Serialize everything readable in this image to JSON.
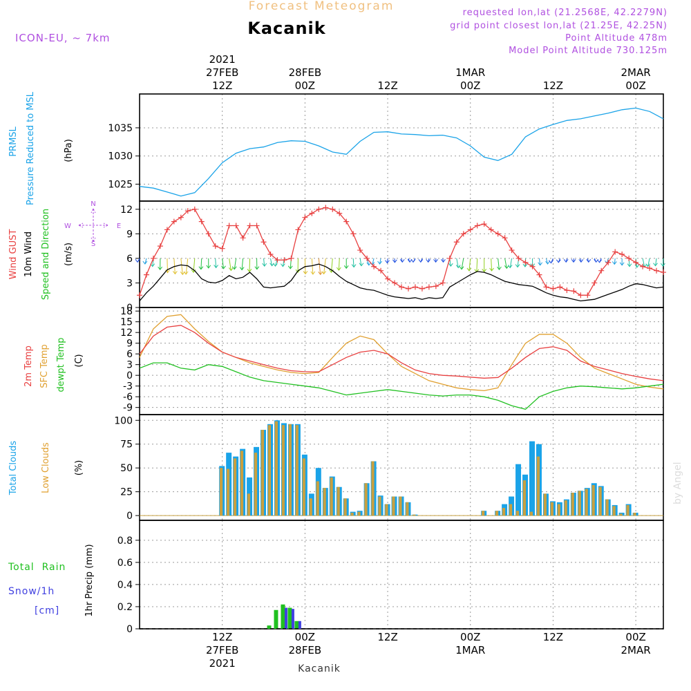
{
  "header": {
    "product": "Forecast Meteogram",
    "location": "Kacanik",
    "model": "ICON-EU, ~ 7km",
    "requested": "requested lon,lat (21.2568E, 42.2279N)",
    "grid_point": "grid point closest lon,lat (21.25E, 42.25N)",
    "point_altitude": "Point Altitude 478m",
    "model_altitude": "Model Point Altitude 730.125m",
    "credit": "by Angel",
    "bottom_label": "Kacanik"
  },
  "time_axis": {
    "top_labels": [
      {
        "t": 12,
        "lines": [
          "2021",
          "27FEB",
          "12Z"
        ]
      },
      {
        "t": 24,
        "lines": [
          "28FEB",
          "00Z"
        ]
      },
      {
        "t": 36,
        "lines": [
          "12Z"
        ]
      },
      {
        "t": 48,
        "lines": [
          "1MAR",
          "00Z"
        ]
      },
      {
        "t": 60,
        "lines": [
          "12Z"
        ]
      },
      {
        "t": 72,
        "lines": [
          "2MAR",
          "00Z"
        ]
      }
    ],
    "bottom_labels": [
      {
        "t": 12,
        "lines": [
          "12Z",
          "27FEB",
          "2021"
        ]
      },
      {
        "t": 24,
        "lines": [
          "00Z",
          "28FEB"
        ]
      },
      {
        "t": 36,
        "lines": [
          "12Z"
        ]
      },
      {
        "t": 48,
        "lines": [
          "00Z",
          "1MAR"
        ]
      },
      {
        "t": 60,
        "lines": [
          "12Z"
        ]
      },
      {
        "t": 72,
        "lines": [
          "00Z",
          "2MAR"
        ]
      }
    ]
  },
  "colors": {
    "pressure": "#1aa3e8",
    "gust": "#e84040",
    "wind": "#000000",
    "sfc_temp": "#e0a030",
    "dewpoint": "#20c020",
    "total_clouds": "#1aa3e8",
    "low_clouds": "#c8a040",
    "rain": "#20c020",
    "snow": "#4040e0",
    "header_purple": "#b050e0",
    "header_orange": "#f0c080"
  },
  "panels": {
    "pressure": {
      "labels": [
        "PRMSL",
        "Pressure Reduced to MSL"
      ],
      "unit": "(hPa)"
    },
    "wind": {
      "labels": [
        "Wind GUST",
        "10m Wind",
        "Speed and Direction"
      ],
      "unit": "(m/s)",
      "compass": [
        "N",
        "W",
        "E",
        "S"
      ]
    },
    "temp": {
      "labels": [
        "2m Temp",
        "SFC Temp",
        "dewpt Temp"
      ],
      "unit": "(C)"
    },
    "clouds": {
      "labels": [
        "Total Clouds",
        "Low Clouds"
      ],
      "unit": "(%)"
    },
    "precip": {
      "labels": [
        "Total  Rain",
        "Snow/1h",
        "[cm]"
      ],
      "unit": "1hr Precip (mm)"
    }
  },
  "chart_data": [
    {
      "type": "line",
      "name": "pressure",
      "ylabel": "(hPa)",
      "ylim": [
        1022,
        1041
      ],
      "yticks": [
        1025,
        1030,
        1035
      ],
      "x": [
        0,
        2,
        4,
        6,
        8,
        10,
        12,
        14,
        16,
        18,
        20,
        22,
        24,
        26,
        28,
        30,
        32,
        34,
        36,
        38,
        40,
        42,
        44,
        46,
        48,
        50,
        52,
        54,
        56,
        58,
        60,
        62,
        64,
        66,
        68,
        70,
        72,
        74,
        76
      ],
      "series": [
        {
          "name": "PRMSL",
          "values": [
            1024.6,
            1024.3,
            1023.6,
            1022.9,
            1023.5,
            1026.0,
            1028.8,
            1030.5,
            1031.3,
            1031.6,
            1032.4,
            1032.7,
            1032.6,
            1031.8,
            1030.7,
            1030.3,
            1032.6,
            1034.2,
            1034.3,
            1033.9,
            1033.8,
            1033.6,
            1033.7,
            1033.2,
            1031.8,
            1029.8,
            1029.2,
            1030.3,
            1033.4,
            1034.8,
            1035.6,
            1036.3,
            1036.6,
            1037.1,
            1037.6,
            1038.2,
            1038.5,
            1037.9,
            1036.6
          ]
        }
      ]
    },
    {
      "type": "line",
      "name": "wind",
      "ylabel": "(m/s)",
      "ylim": [
        0,
        13
      ],
      "yticks": [
        0,
        3,
        6,
        9,
        12
      ],
      "x": [
        0,
        1,
        2,
        3,
        4,
        5,
        6,
        7,
        8,
        9,
        10,
        11,
        12,
        13,
        14,
        15,
        16,
        17,
        18,
        19,
        20,
        21,
        22,
        23,
        24,
        25,
        26,
        27,
        28,
        29,
        30,
        31,
        32,
        33,
        34,
        35,
        36,
        37,
        38,
        39,
        40,
        41,
        42,
        43,
        44,
        45,
        46,
        47,
        48,
        49,
        50,
        51,
        52,
        53,
        54,
        55,
        56,
        57,
        58,
        59,
        60,
        61,
        62,
        63,
        64,
        65,
        66,
        67,
        68,
        69,
        70,
        71,
        72,
        73,
        74,
        75,
        76
      ],
      "series": [
        {
          "name": "Wind GUST",
          "values": [
            1.5,
            4,
            6,
            7.5,
            9.5,
            10.5,
            11,
            11.8,
            12,
            10.5,
            9,
            7.5,
            7.2,
            10,
            10,
            8.5,
            10,
            10,
            8,
            6.5,
            5.8,
            5.8,
            6,
            9.5,
            11,
            11.5,
            12,
            12.2,
            12,
            11.5,
            10.5,
            9,
            7,
            6,
            5,
            4.5,
            3.5,
            3,
            2.5,
            2.3,
            2.5,
            2.3,
            2.5,
            2.6,
            3,
            6,
            8,
            9,
            9.5,
            10,
            10.2,
            9.5,
            9,
            8.5,
            7,
            6,
            5.5,
            5,
            4,
            2.5,
            2.3,
            2.5,
            2.1,
            2,
            1.5,
            1.5,
            3,
            4.5,
            5.5,
            6.8,
            6.5,
            6,
            5.5,
            5,
            4.8,
            4.5,
            4.3
          ]
        },
        {
          "name": "10m Wind",
          "values": [
            0.8,
            1.8,
            2.6,
            3.6,
            4.6,
            5.0,
            5.2,
            5.1,
            4.5,
            3.5,
            3.1,
            3.0,
            3.3,
            3.9,
            3.5,
            3.7,
            4.3,
            3.5,
            2.5,
            2.4,
            2.5,
            2.6,
            3.3,
            4.5,
            5.0,
            5.1,
            5.3,
            5.0,
            4.5,
            3.8,
            3.2,
            2.8,
            2.4,
            2.2,
            2.1,
            1.8,
            1.5,
            1.3,
            1.2,
            1.1,
            1.2,
            1.0,
            1.2,
            1.1,
            1.2,
            2.5,
            3.0,
            3.5,
            4.0,
            4.4,
            4.3,
            4.0,
            3.6,
            3.2,
            3.0,
            2.8,
            2.7,
            2.6,
            2.2,
            1.8,
            1.5,
            1.3,
            1.2,
            1.0,
            0.8,
            0.9,
            1.0,
            1.3,
            1.6,
            1.9,
            2.2,
            2.6,
            2.9,
            2.8,
            2.6,
            2.4,
            2.5
          ]
        }
      ]
    },
    {
      "type": "line",
      "name": "temperature",
      "ylabel": "(C)",
      "ylim": [
        -11,
        19
      ],
      "yticks": [
        -9,
        -6,
        -3,
        0,
        3,
        6,
        9,
        12,
        15,
        18
      ],
      "x": [
        0,
        2,
        4,
        6,
        8,
        10,
        12,
        14,
        16,
        18,
        20,
        22,
        24,
        26,
        28,
        30,
        32,
        34,
        36,
        38,
        40,
        42,
        44,
        46,
        48,
        50,
        52,
        54,
        56,
        58,
        60,
        62,
        64,
        66,
        68,
        70,
        72,
        74,
        76
      ],
      "series": [
        {
          "name": "2m Temp",
          "values": [
            6,
            11,
            13.5,
            14,
            12,
            9,
            6.5,
            5,
            4,
            3,
            2,
            1.3,
            1,
            1,
            3,
            5,
            6.5,
            7,
            6,
            3.5,
            1.5,
            0.5,
            0,
            -0.2,
            -0.5,
            -0.8,
            -0.6,
            2,
            5,
            7.5,
            8,
            7,
            4,
            2.5,
            1.5,
            0.5,
            -0.3,
            -1,
            -1.5
          ]
        },
        {
          "name": "SFC Temp",
          "values": [
            5,
            13,
            16.5,
            17,
            13,
            9.5,
            6.5,
            5,
            3.5,
            2.5,
            1.5,
            0.8,
            0.5,
            0.8,
            5,
            9,
            11,
            10,
            6,
            2.5,
            0.5,
            -1.5,
            -2.5,
            -3.5,
            -4,
            -4.3,
            -3.5,
            3,
            9,
            11.5,
            11.5,
            9,
            5,
            2,
            0.5,
            -1,
            -2.5,
            -3.3,
            -3.8
          ]
        },
        {
          "name": "dewpt Temp",
          "values": [
            2,
            3.5,
            3.5,
            2,
            1.5,
            3,
            2.5,
            1,
            -0.5,
            -1.5,
            -2,
            -2.5,
            -3,
            -3.5,
            -4.5,
            -5.5,
            -5,
            -4.5,
            -4,
            -4.5,
            -5,
            -5.5,
            -5.8,
            -5.5,
            -5.5,
            -6,
            -7,
            -8.5,
            -9.5,
            -6,
            -4.5,
            -3.5,
            -3,
            -3.2,
            -3.5,
            -3.8,
            -3.5,
            -3,
            -2.5
          ]
        }
      ]
    },
    {
      "type": "bar",
      "name": "clouds",
      "ylabel": "(%)",
      "ylim": [
        -5,
        106
      ],
      "yticks": [
        0,
        25,
        50,
        75,
        100
      ],
      "x": [
        12,
        13,
        14,
        15,
        16,
        17,
        18,
        19,
        20,
        21,
        22,
        23,
        24,
        25,
        26,
        27,
        28,
        29,
        30,
        31,
        32,
        33,
        34,
        35,
        36,
        37,
        38,
        39,
        40,
        50,
        52,
        53,
        54,
        55,
        56,
        57,
        58,
        59,
        60,
        61,
        62,
        63,
        64,
        65,
        66,
        67,
        68,
        69,
        70,
        71,
        72,
        73,
        74,
        75
      ],
      "series": [
        {
          "name": "Total Clouds",
          "values": [
            52,
            66,
            62,
            70,
            40,
            72,
            90,
            96,
            100,
            97,
            96,
            96,
            64,
            23,
            50,
            29,
            41,
            30,
            18,
            4,
            5,
            34,
            57,
            21,
            12,
            20,
            20,
            14,
            1,
            5,
            5,
            12,
            20,
            54,
            43,
            78,
            75,
            23,
            15,
            14,
            17,
            24,
            26,
            29,
            34,
            31,
            17,
            11,
            3,
            12,
            3,
            0,
            0,
            0
          ]
        },
        {
          "name": "Low Clouds",
          "values": [
            50,
            49,
            60,
            68,
            23,
            66,
            90,
            95,
            99,
            95,
            96,
            95,
            60,
            18,
            36,
            29,
            40,
            30,
            18,
            3,
            4,
            34,
            57,
            20,
            12,
            20,
            20,
            14,
            1,
            5,
            5,
            8,
            12,
            5,
            37,
            4,
            62,
            23,
            14,
            12,
            16,
            24,
            26,
            28,
            32,
            30,
            17,
            10,
            2,
            11,
            3,
            0,
            0,
            0
          ]
        }
      ]
    },
    {
      "type": "bar",
      "name": "precip",
      "ylabel": "1hr Precip (mm)",
      "ylim": [
        0,
        0.98
      ],
      "yticks": [
        0,
        0.2,
        0.4,
        0.6,
        0.8
      ],
      "x": [
        19,
        20,
        21,
        22,
        23
      ],
      "series": [
        {
          "name": "Total Rain",
          "values": [
            0.03,
            0.17,
            0.22,
            0.19,
            0.07
          ]
        },
        {
          "name": "Snow/1h",
          "values": [
            0,
            0,
            0.19,
            0.18,
            0.07
          ]
        }
      ]
    }
  ]
}
